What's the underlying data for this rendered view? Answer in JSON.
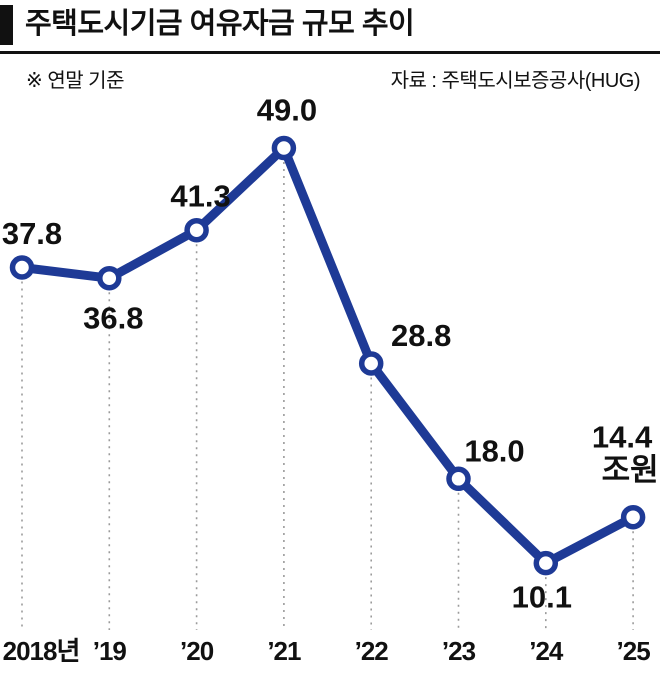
{
  "header": {
    "title": "주택도시기금 여유자금 규모 추이",
    "note": "※ 연말 기준",
    "source": "자료 : 주택도시보증공사(HUG)"
  },
  "chart_data": {
    "type": "line",
    "title": "주택도시기금 여유자금 규모 추이",
    "categories": [
      "2018년",
      "’19",
      "’20",
      "’21",
      "’22",
      "’23",
      "’24",
      "’25"
    ],
    "values": [
      37.8,
      36.8,
      41.3,
      49.0,
      28.8,
      18.0,
      10.1,
      14.4
    ],
    "unit": "조원",
    "xlabel": "",
    "ylabel": "",
    "ylim": [
      5,
      52
    ],
    "grid": "dashed vertical droplines",
    "legend": "none",
    "line_color": "#1e3a96",
    "marker": "open-circle",
    "colors": {
      "label_text": "#111111",
      "dropline": "#9b9b9b",
      "marker_fill": "#ffffff"
    }
  }
}
